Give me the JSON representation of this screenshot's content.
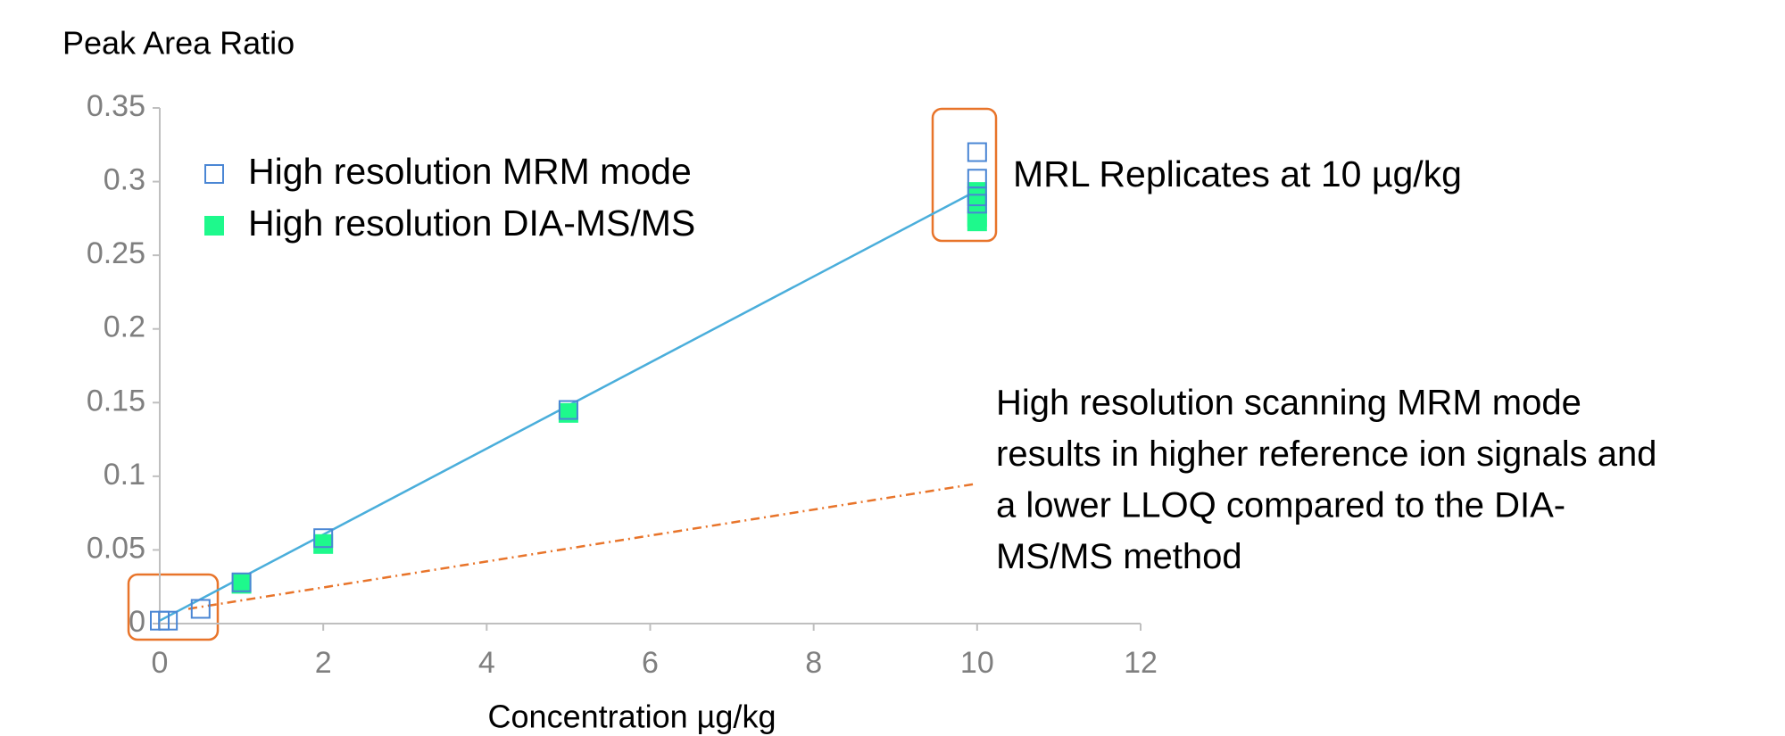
{
  "chart_data": {
    "type": "scatter",
    "y_label": "Peak Area Ratio",
    "x_label": "Concentration µg/kg",
    "xlim": [
      0,
      12
    ],
    "xticks": [
      0,
      2,
      4,
      6,
      8,
      10,
      12
    ],
    "ylim": [
      0,
      0.35
    ],
    "yticks": [
      0,
      0.05,
      0.1,
      0.15,
      0.2,
      0.25,
      0.3,
      0.35
    ],
    "series": [
      {
        "name": "High resolution MRM mode",
        "color": "#4a86d4",
        "marker": "open-square",
        "x": [
          0,
          0.1,
          0.5,
          1,
          2,
          5,
          10,
          10,
          10,
          10
        ],
        "values": [
          0.002,
          0.002,
          0.01,
          0.028,
          0.058,
          0.145,
          0.32,
          0.302,
          0.29,
          0.285
        ]
      },
      {
        "name": "High resolution DIA-MS/MS",
        "color": "#1ef98c",
        "marker": "filled-square",
        "x": [
          1,
          2,
          5,
          10,
          10,
          10,
          10
        ],
        "values": [
          0.027,
          0.054,
          0.143,
          0.293,
          0.285,
          0.276,
          0.273
        ]
      }
    ],
    "lines": [
      {
        "color": "#4aaedb",
        "style": "solid",
        "x": [
          0,
          10
        ],
        "values": [
          0.002,
          0.294
        ]
      },
      {
        "color": "#e8742a",
        "style": "dash-dot",
        "x": [
          0.35,
          10
        ],
        "values": [
          0.01,
          0.095
        ]
      }
    ],
    "annotations": {
      "replicates": "MRL Replicates at 10 µg/kg",
      "note": [
        "High resolution scanning MRM mode",
        "results in higher reference ion signals and",
        "a lower LLOQ compared to the DIA-",
        "MS/MS method"
      ]
    }
  }
}
